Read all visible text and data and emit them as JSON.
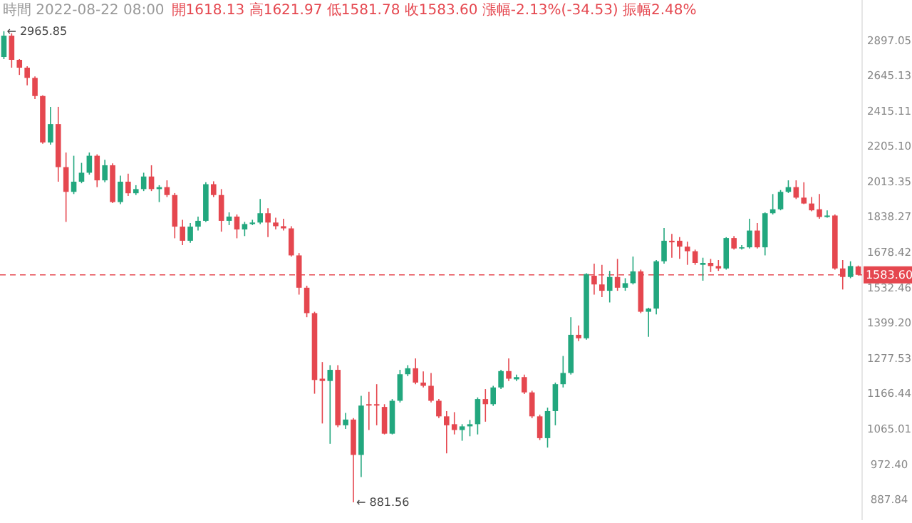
{
  "chart_data": {
    "type": "candlestick",
    "title": "時間 2022-08-22 08:00",
    "subtitle": "開1618.13 高1621.97 低1581.78 收1583.60 漲幅-2.13%(-34.53) 振幅2.48%",
    "categories": [
      null,
      null,
      null,
      null,
      null,
      null,
      null,
      null,
      null,
      null,
      null,
      null,
      null,
      null,
      null,
      null,
      null,
      null,
      null,
      null,
      null,
      null,
      null,
      null,
      null,
      null,
      null,
      null,
      null,
      null,
      null,
      null,
      null,
      null,
      null,
      null,
      null,
      null,
      null,
      null,
      null,
      null,
      null,
      null,
      null,
      null,
      null,
      null,
      null,
      null,
      null,
      null,
      null,
      null,
      null,
      null,
      null,
      null,
      null,
      null,
      null,
      null,
      null,
      null,
      null,
      null,
      null,
      null,
      null,
      null,
      null,
      null,
      null,
      null,
      null,
      null,
      null,
      null,
      null,
      null,
      null,
      null,
      null,
      null,
      null,
      null,
      null,
      null,
      null,
      null,
      null,
      null,
      null,
      null,
      null,
      null,
      null,
      null,
      null,
      null,
      null,
      null,
      null,
      null,
      null,
      null,
      null,
      null,
      null,
      null,
      null
    ],
    "ohlc": [
      [
        2775,
        2965.85,
        2760,
        2932
      ],
      [
        2932,
        2950,
        2700,
        2755
      ],
      [
        2755,
        2760,
        2650,
        2700
      ],
      [
        2700,
        2710,
        2580,
        2630
      ],
      [
        2630,
        2640,
        2490,
        2510
      ],
      [
        2510,
        2515,
        2220,
        2227
      ],
      [
        2227,
        2441,
        2215,
        2335
      ],
      [
        2335,
        2441,
        2013,
        2090
      ],
      [
        2090,
        2170,
        1815,
        1961
      ],
      [
        1961,
        2152,
        1950,
        2013
      ],
      [
        2013,
        2113,
        2005,
        2060
      ],
      [
        2060,
        2170,
        2050,
        2152
      ],
      [
        2152,
        2160,
        1985,
        2020
      ],
      [
        2020,
        2130,
        2010,
        2100
      ],
      [
        2100,
        2110,
        1905,
        1910
      ],
      [
        1910,
        2045,
        1900,
        2013
      ],
      [
        2013,
        2055,
        1940,
        1954
      ],
      [
        1954,
        1995,
        1945,
        1975
      ],
      [
        1975,
        2060,
        1965,
        2040
      ],
      [
        2040,
        2100,
        1965,
        1975
      ],
      [
        1975,
        1995,
        1910,
        1985
      ],
      [
        1985,
        2020,
        1935,
        1945
      ],
      [
        1945,
        1955,
        1740,
        1793
      ],
      [
        1793,
        1825,
        1710,
        1729
      ],
      [
        1729,
        1810,
        1720,
        1793
      ],
      [
        1793,
        1840,
        1775,
        1820
      ],
      [
        1820,
        2010,
        1815,
        2000
      ],
      [
        2000,
        2015,
        1935,
        1945
      ],
      [
        1945,
        1975,
        1770,
        1820
      ],
      [
        1820,
        1860,
        1800,
        1840
      ],
      [
        1840,
        1850,
        1740,
        1780
      ],
      [
        1780,
        1815,
        1750,
        1805
      ],
      [
        1805,
        1825,
        1800,
        1812
      ],
      [
        1812,
        1925,
        1805,
        1856
      ],
      [
        1856,
        1880,
        1745,
        1812
      ],
      [
        1812,
        1835,
        1780,
        1795
      ],
      [
        1795,
        1830,
        1775,
        1785
      ],
      [
        1785,
        1795,
        1660,
        1665
      ],
      [
        1665,
        1675,
        1505,
        1532
      ],
      [
        1532,
        1540,
        1420,
        1435
      ],
      [
        1435,
        1440,
        1166,
        1208
      ],
      [
        1212,
        1265,
        1080,
        1205
      ],
      [
        1205,
        1255,
        1025,
        1240
      ],
      [
        1240,
        1255,
        1070,
        1075
      ],
      [
        1075,
        1110,
        1065,
        1091
      ],
      [
        1091,
        1095,
        881.56,
        996
      ],
      [
        996,
        1160,
        941,
        1131
      ],
      [
        1135,
        1172,
        1062,
        1131
      ],
      [
        1135,
        1195,
        1075,
        1131
      ],
      [
        1127,
        1135,
        1050,
        1052
      ],
      [
        1052,
        1150,
        1050,
        1145
      ],
      [
        1145,
        1240,
        1140,
        1226
      ],
      [
        1226,
        1255,
        1220,
        1245
      ],
      [
        1245,
        1277,
        1195,
        1200
      ],
      [
        1200,
        1235,
        1185,
        1190
      ],
      [
        1190,
        1230,
        1140,
        1145
      ],
      [
        1145,
        1150,
        1095,
        1100
      ],
      [
        1100,
        1115,
        1000,
        1075
      ],
      [
        1078,
        1112,
        1050,
        1062
      ],
      [
        1062,
        1078,
        1033,
        1072
      ],
      [
        1072,
        1090,
        1045,
        1078
      ],
      [
        1078,
        1155,
        1050,
        1150
      ],
      [
        1150,
        1180,
        1085,
        1135
      ],
      [
        1135,
        1190,
        1130,
        1185
      ],
      [
        1185,
        1240,
        1180,
        1236
      ],
      [
        1236,
        1277,
        1205,
        1212
      ],
      [
        1210,
        1225,
        1205,
        1217
      ],
      [
        1217,
        1225,
        1165,
        1170
      ],
      [
        1170,
        1175,
        1095,
        1100
      ],
      [
        1100,
        1105,
        1035,
        1040
      ],
      [
        1040,
        1125,
        1015,
        1115
      ],
      [
        1115,
        1200,
        1075,
        1195
      ],
      [
        1195,
        1285,
        1185,
        1230
      ],
      [
        1230,
        1420,
        1225,
        1357
      ],
      [
        1357,
        1390,
        1335,
        1345
      ],
      [
        1345,
        1590,
        1340,
        1587
      ],
      [
        1580,
        1630,
        1505,
        1545
      ],
      [
        1545,
        1625,
        1495,
        1520
      ],
      [
        1520,
        1600,
        1475,
        1575
      ],
      [
        1575,
        1650,
        1520,
        1532
      ],
      [
        1532,
        1570,
        1520,
        1550
      ],
      [
        1550,
        1660,
        1545,
        1598
      ],
      [
        1598,
        1605,
        1435,
        1440
      ],
      [
        1440,
        1455,
        1350,
        1452
      ],
      [
        1452,
        1645,
        1430,
        1640
      ],
      [
        1640,
        1787,
        1630,
        1729
      ],
      [
        1729,
        1760,
        1655,
        1722
      ],
      [
        1729,
        1745,
        1650,
        1703
      ],
      [
        1703,
        1725,
        1625,
        1683
      ],
      [
        1683,
        1690,
        1625,
        1633
      ],
      [
        1625,
        1655,
        1560,
        1633
      ],
      [
        1633,
        1650,
        1595,
        1620
      ],
      [
        1620,
        1645,
        1600,
        1610
      ],
      [
        1610,
        1745,
        1605,
        1741
      ],
      [
        1741,
        1750,
        1690,
        1695
      ],
      [
        1695,
        1710,
        1690,
        1700
      ],
      [
        1700,
        1830,
        1695,
        1775
      ],
      [
        1775,
        1810,
        1695,
        1700
      ],
      [
        1700,
        1860,
        1665,
        1856
      ],
      [
        1856,
        1950,
        1850,
        1875
      ],
      [
        1875,
        1970,
        1870,
        1961
      ],
      [
        1961,
        2020,
        1955,
        1985
      ],
      [
        1985,
        2020,
        1925,
        1932
      ],
      [
        1932,
        2010,
        1900,
        1903
      ],
      [
        1903,
        1935,
        1865,
        1870
      ],
      [
        1875,
        1950,
        1830,
        1838
      ],
      [
        1838,
        1870,
        1835,
        1845
      ],
      [
        1845,
        1850,
        1605,
        1610
      ],
      [
        1610,
        1645,
        1525,
        1575
      ],
      [
        1575,
        1640,
        1570,
        1620
      ],
      [
        1618.13,
        1621.97,
        1581.78,
        1583.6
      ]
    ],
    "colors": [
      "#22a77e",
      "#e5474f",
      "#e5474f",
      "#e5474f",
      "#e5474f",
      "#e5474f",
      "#22a77e",
      "#e5474f",
      "#e5474f",
      "#22a77e",
      "#22a77e",
      "#22a77e",
      "#e5474f",
      "#22a77e",
      "#e5474f",
      "#22a77e",
      "#e5474f",
      "#22a77e",
      "#22a77e",
      "#e5474f",
      "#22a77e",
      "#e5474f",
      "#e5474f",
      "#e5474f",
      "#22a77e",
      "#22a77e",
      "#22a77e",
      "#e5474f",
      "#e5474f",
      "#22a77e",
      "#e5474f",
      "#22a77e",
      "#22a77e",
      "#22a77e",
      "#e5474f",
      "#e5474f",
      "#e5474f",
      "#e5474f",
      "#e5474f",
      "#e5474f",
      "#e5474f",
      "#e5474f",
      "#22a77e",
      "#e5474f",
      "#22a77e",
      "#e5474f",
      "#22a77e",
      "#e5474f",
      "#e5474f",
      "#e5474f",
      "#22a77e",
      "#22a77e",
      "#22a77e",
      "#e5474f",
      "#e5474f",
      "#e5474f",
      "#e5474f",
      "#e5474f",
      "#e5474f",
      "#22a77e",
      "#22a77e",
      "#22a77e",
      "#e5474f",
      "#22a77e",
      "#22a77e",
      "#e5474f",
      "#22a77e",
      "#e5474f",
      "#e5474f",
      "#e5474f",
      "#22a77e",
      "#22a77e",
      "#22a77e",
      "#22a77e",
      "#e5474f",
      "#22a77e",
      "#e5474f",
      "#e5474f",
      "#22a77e",
      "#e5474f",
      "#22a77e",
      "#22a77e",
      "#e5474f",
      "#22a77e",
      "#22a77e",
      "#22a77e",
      "#e5474f",
      "#e5474f",
      "#e5474f",
      "#e5474f",
      "#22a77e",
      "#e5474f",
      "#e5474f",
      "#22a77e",
      "#e5474f",
      "#22a77e",
      "#22a77e",
      "#e5474f",
      "#22a77e",
      "#22a77e",
      "#22a77e",
      "#22a77e",
      "#e5474f",
      "#e5474f",
      "#e5474f",
      "#e5474f",
      "#22a77e",
      "#e5474f",
      "#e5474f",
      "#22a77e",
      "#e5474f"
    ],
    "log": true,
    "ylim": [
      842,
      3214
    ],
    "yticks": [
      2897.05,
      2645.13,
      2415.11,
      {
        "value": 2205.1,
        "label": "2205.10"
      },
      2013.35,
      1838.27,
      1678.42,
      1532.46,
      {
        "value": 1399.2,
        "label": "1399.20"
      },
      1277.53,
      1166.44,
      1065.01,
      {
        "value": 972.4,
        "label": "972.40"
      },
      887.84
    ],
    "ref_lines": [
      {
        "axis": "y",
        "value": 1583.6,
        "label": "1583.60",
        "color": "#e5474f",
        "line_style": "dashed"
      }
    ],
    "annotations": [
      "← 2965.85",
      "← 881.56"
    ]
  }
}
